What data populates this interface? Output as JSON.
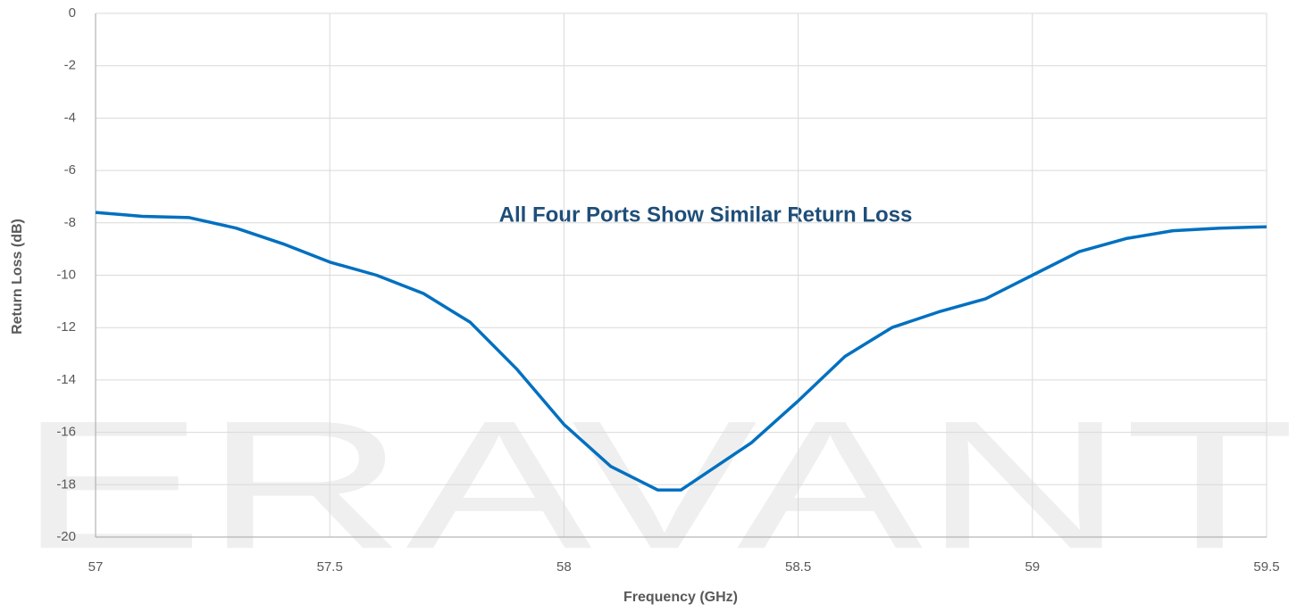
{
  "chart_data": {
    "type": "line",
    "watermark": "ERAVANT",
    "annotation": "All Four Ports Show Similar Return Loss",
    "x_label": "Frequency (GHz)",
    "y_label": "Return Loss (dB)",
    "x": [
      57.0,
      57.1,
      57.2,
      57.3,
      57.4,
      57.5,
      57.6,
      57.7,
      57.8,
      57.9,
      58.0,
      58.1,
      58.2,
      58.25,
      58.3,
      58.4,
      58.5,
      58.6,
      58.7,
      58.8,
      58.9,
      59.0,
      59.1,
      59.2,
      59.3,
      59.4,
      59.5
    ],
    "values": [
      -7.6,
      -7.75,
      -7.8,
      -8.2,
      -8.8,
      -9.5,
      -10.0,
      -10.7,
      -11.8,
      -13.6,
      -15.7,
      -17.3,
      -18.2,
      -18.2,
      -17.6,
      -16.4,
      -14.8,
      -13.1,
      -12.0,
      -11.4,
      -10.9,
      -10.0,
      -9.1,
      -8.6,
      -8.3,
      -8.2,
      -8.15
    ],
    "color": "#0070c0",
    "xlim": [
      57,
      59.5
    ],
    "xticks": [
      57,
      57.5,
      58,
      58.5,
      59,
      59.5
    ],
    "ylim": [
      -20,
      0
    ],
    "yticks": [
      0,
      -2,
      -4,
      -6,
      -8,
      -10,
      -12,
      -14,
      -16,
      -18,
      -20
    ],
    "grid": true
  }
}
